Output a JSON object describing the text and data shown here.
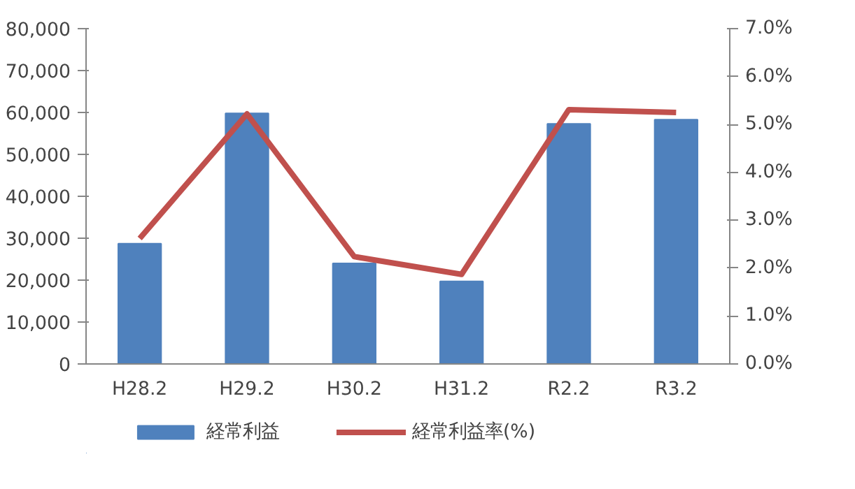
{
  "chart_data": {
    "type": "bar",
    "categories": [
      "H28.2",
      "H29.2",
      "H30.2",
      "H31.2",
      "R2.2",
      "R3.2"
    ],
    "series": [
      {
        "name": "経常利益",
        "color": "#4f81bd",
        "values": [
          28700,
          59800,
          24000,
          19700,
          57300,
          58300
        ]
      },
      {
        "name": "経常利益率(%)",
        "type": "line",
        "axis": "y2",
        "color": "#c0504d",
        "values": [
          2.62,
          5.22,
          2.24,
          1.87,
          5.31,
          5.25
        ]
      }
    ],
    "ylim": [
      0,
      80000
    ],
    "yticks": [
      {
        "value": 0,
        "label": "0"
      },
      {
        "value": 10000,
        "label": "10,000"
      },
      {
        "value": 20000,
        "label": "20,000"
      },
      {
        "value": 30000,
        "label": "30,000"
      },
      {
        "value": 40000,
        "label": "40,000"
      },
      {
        "value": 50000,
        "label": "50,000"
      },
      {
        "value": 60000,
        "label": "60,000"
      },
      {
        "value": 70000,
        "label": "70,000"
      },
      {
        "value": 80000,
        "label": "80,000"
      }
    ],
    "y2lim": [
      0,
      7
    ],
    "y2ticks": [
      {
        "value": 0,
        "label": "0.0%"
      },
      {
        "value": 1,
        "label": "1.0%"
      },
      {
        "value": 2,
        "label": "2.0%"
      },
      {
        "value": 3,
        "label": "3.0%"
      },
      {
        "value": 4,
        "label": "4.0%"
      },
      {
        "value": 5,
        "label": "5.0%"
      },
      {
        "value": 6,
        "label": "6.0%"
      },
      {
        "value": 7,
        "label": "7.0%"
      }
    ],
    "grid": false,
    "legend": "bottom",
    "marker": "none",
    "line_style": "solid"
  }
}
